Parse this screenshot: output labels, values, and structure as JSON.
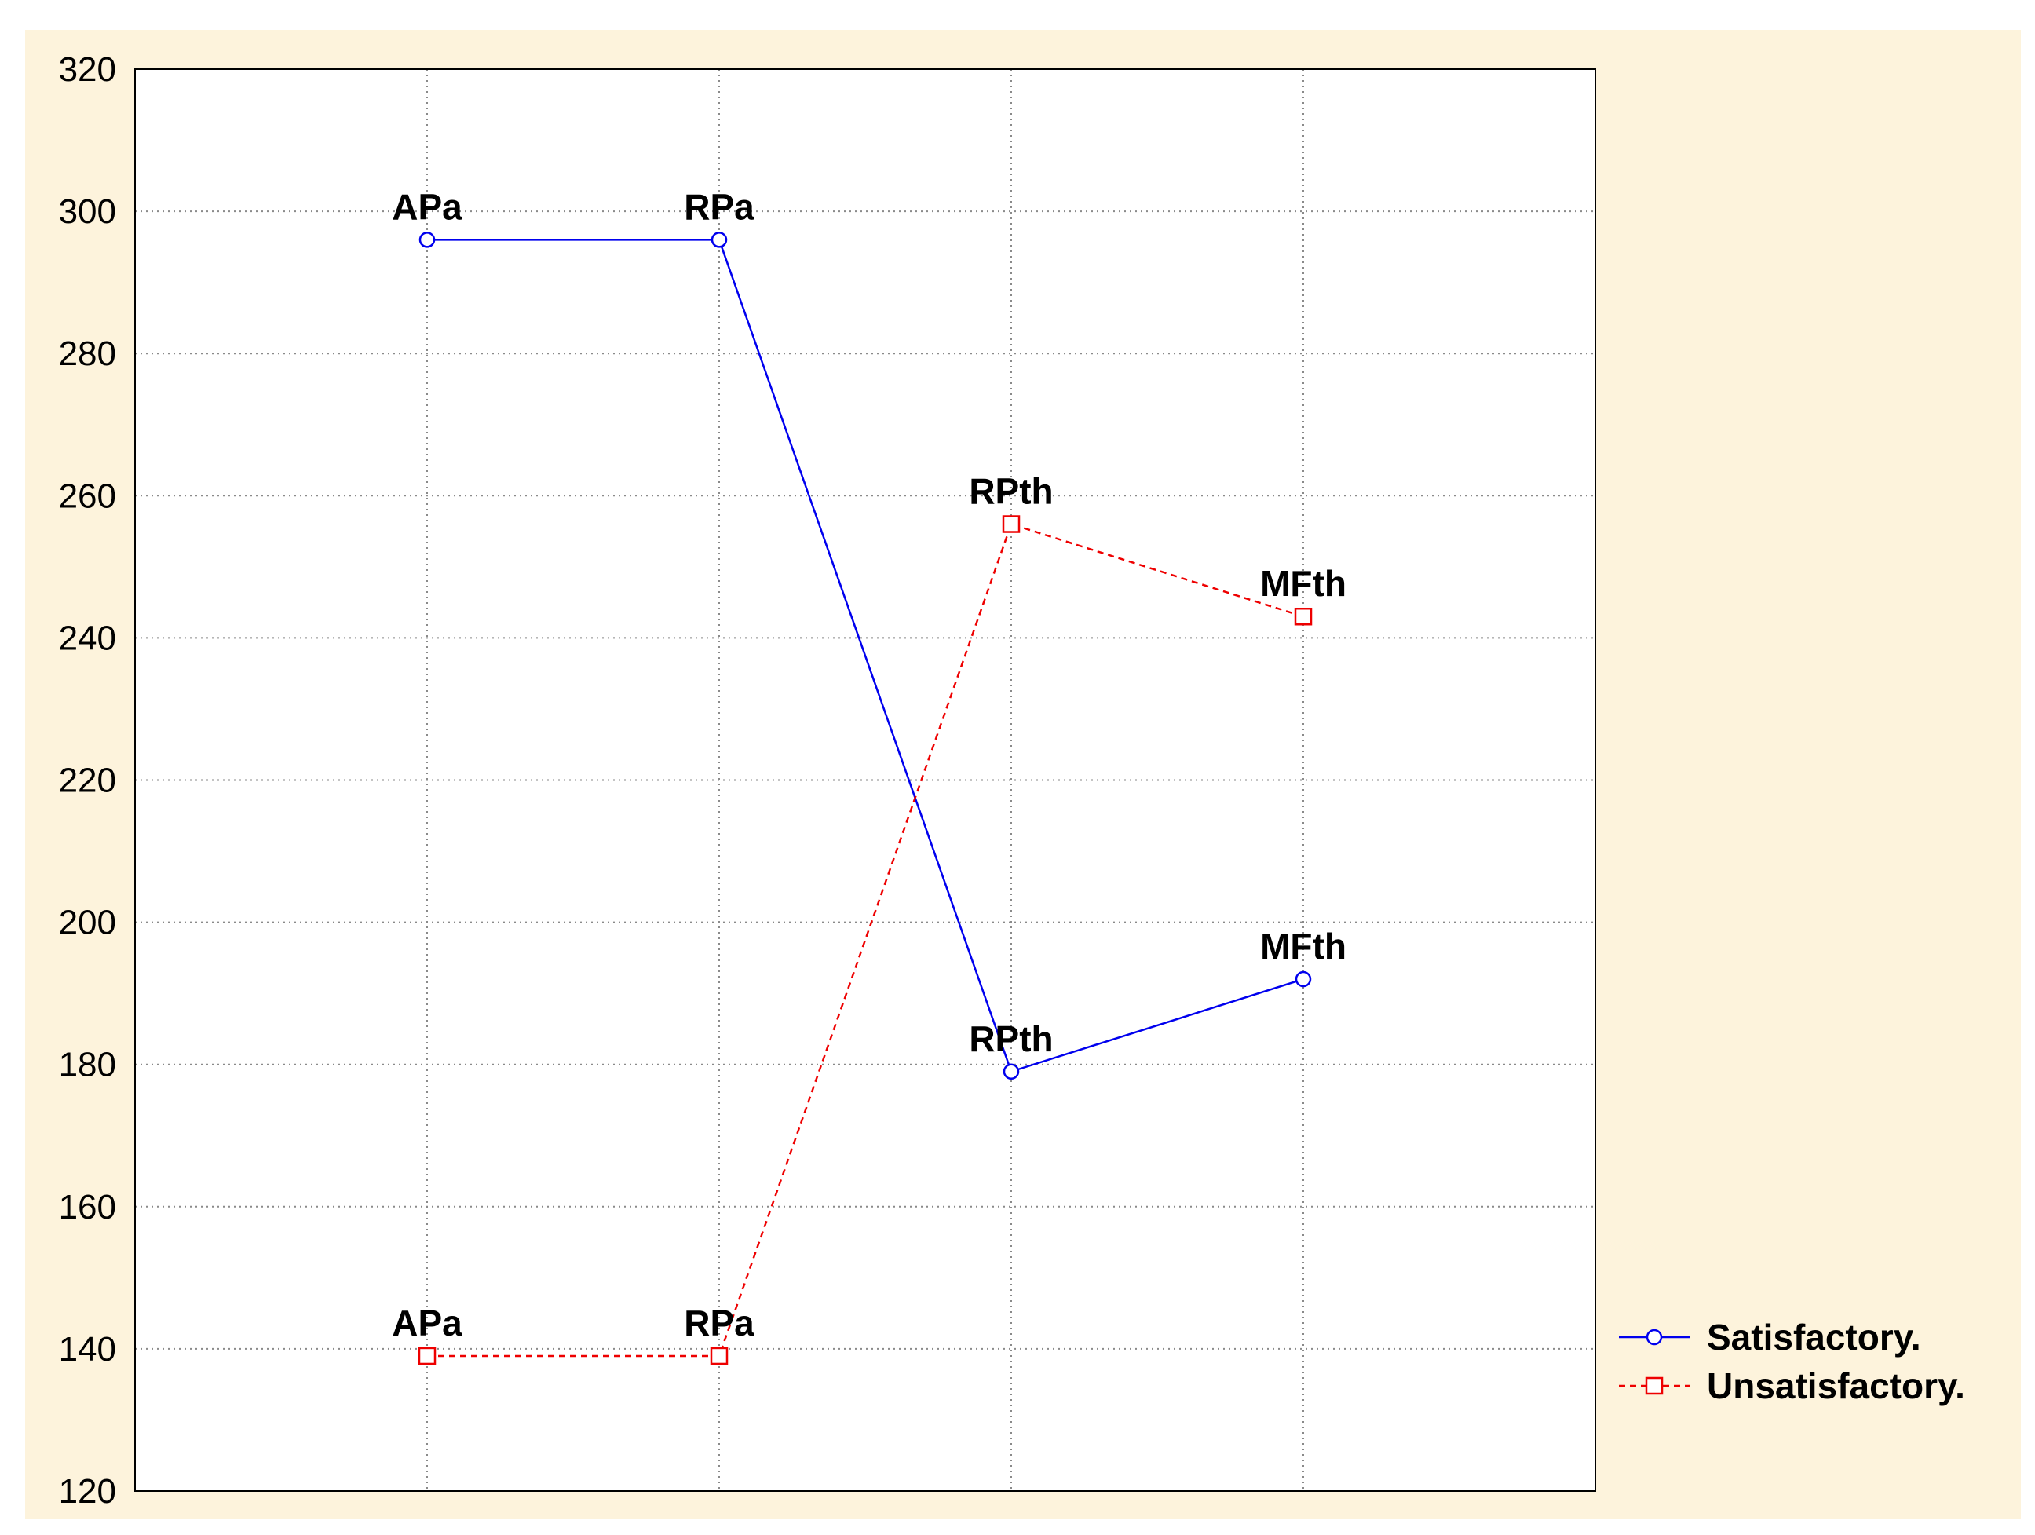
{
  "chart_data": {
    "type": "line",
    "title": "",
    "xlabel": "",
    "ylabel": "",
    "ylim": [
      120,
      320
    ],
    "yticks": [
      120,
      140,
      160,
      180,
      200,
      220,
      240,
      260,
      280,
      300,
      320
    ],
    "x_positions": 4,
    "grid": true,
    "legend_position": "right",
    "background_color": "#fdf3dc",
    "plot_background": "#ffffff",
    "series": [
      {
        "name": "Satisfactory.",
        "color": "#0000ee",
        "line_style": "solid",
        "marker": "circle",
        "values": [
          296,
          296,
          179,
          192
        ],
        "point_labels": [
          "APa",
          "RPa",
          "RPth",
          "MFth"
        ]
      },
      {
        "name": "Unsatisfactory.",
        "color": "#ee0000",
        "line_style": "dashed",
        "marker": "square",
        "values": [
          139,
          139,
          256,
          243
        ],
        "point_labels": [
          "APa",
          "RPa",
          "RPth",
          "MFth"
        ]
      }
    ]
  }
}
